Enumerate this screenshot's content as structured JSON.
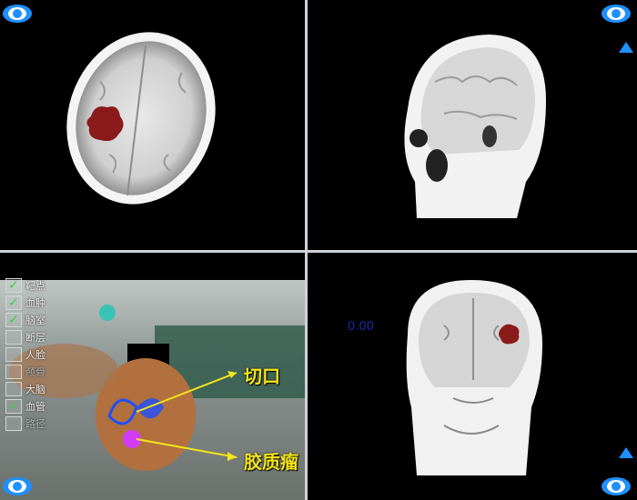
{
  "viewer": {
    "panes": {
      "axial": {
        "eye_icon": "eye-icon"
      },
      "sagittal": {
        "eye_icon": "eye-icon",
        "arrow": "triangle-up-icon"
      },
      "coronal": {
        "zoom_value": "0.00",
        "arrow": "triangle-up-icon",
        "eye_icon": "eye-icon"
      },
      "photo": {
        "layers": [
          {
            "label": "靶点",
            "checked": true
          },
          {
            "label": "血肿",
            "checked": true
          },
          {
            "label": "脑室",
            "checked": true
          },
          {
            "label": "断层",
            "checked": false
          },
          {
            "label": "人脸",
            "checked": false
          },
          {
            "label": "颅骨",
            "checked": false
          },
          {
            "label": "大脑",
            "checked": false
          },
          {
            "label": "血管",
            "checked": true
          },
          {
            "label": "路径",
            "checked": false
          }
        ],
        "annotations": {
          "incision": "切口",
          "glioma": "胶质瘤"
        }
      }
    },
    "colors": {
      "lesion": "#8b1a1a",
      "accent_blue": "#1e90ff",
      "check_green": "#33d24a",
      "annotation_yellow": "#f4e51a"
    }
  }
}
